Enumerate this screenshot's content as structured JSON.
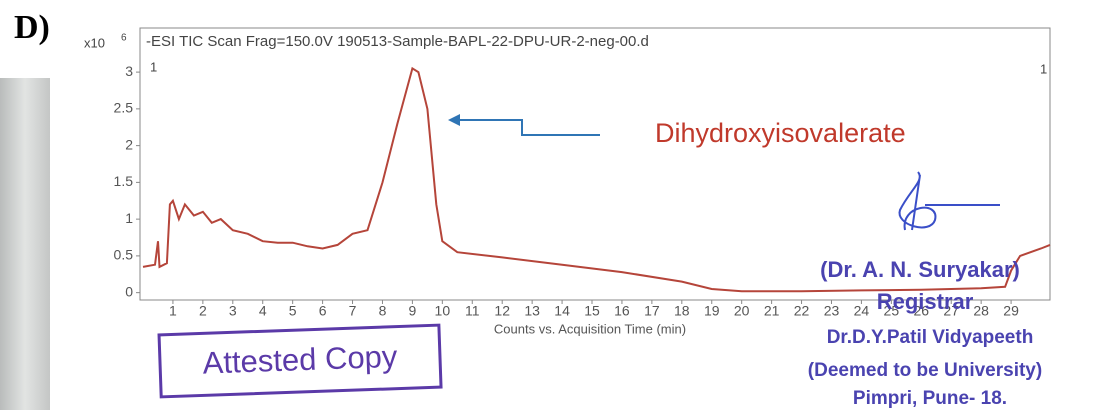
{
  "panel_label": "D)",
  "chart_data": {
    "type": "line",
    "title": "-ESI TIC Scan Frag=150.0V 190513-Sample-BAPL-22-DPU-UR-2-neg-00.d",
    "y_scale_base": "x10",
    "y_scale_exponent": "6",
    "markers": [
      "1",
      "1"
    ],
    "xlabel": "Counts vs. Acquisition Time (min)",
    "annotation": "Dihydroxyisovalerate",
    "x": [
      0,
      0.4,
      0.5,
      0.55,
      0.8,
      0.9,
      1.0,
      1.2,
      1.4,
      1.7,
      2.0,
      2.3,
      2.6,
      3.0,
      3.5,
      4.0,
      4.5,
      5.0,
      5.5,
      6.0,
      6.5,
      7.0,
      7.5,
      8.0,
      8.5,
      9.0,
      9.2,
      9.5,
      9.8,
      10.0,
      10.5,
      12,
      14,
      16,
      18,
      19,
      20,
      22,
      24,
      26,
      28,
      28.8,
      29.0,
      29.3,
      30.0,
      30.3
    ],
    "values": [
      0.35,
      0.38,
      0.7,
      0.35,
      0.4,
      1.2,
      1.25,
      1.0,
      1.2,
      1.05,
      1.1,
      0.95,
      1.0,
      0.85,
      0.8,
      0.7,
      0.68,
      0.68,
      0.63,
      0.6,
      0.65,
      0.8,
      0.85,
      1.5,
      2.3,
      3.05,
      3.0,
      2.5,
      1.2,
      0.7,
      0.55,
      0.48,
      0.38,
      0.28,
      0.15,
      0.05,
      0.02,
      0.02,
      0.03,
      0.04,
      0.06,
      0.08,
      0.3,
      0.5,
      0.6,
      0.65
    ],
    "color": "#b5453a",
    "xlim": [
      -0.1,
      30.3
    ],
    "ylim": [
      -0.1,
      3.6
    ],
    "xticks": [
      1,
      2,
      3,
      4,
      5,
      6,
      7,
      8,
      9,
      10,
      11,
      12,
      13,
      14,
      15,
      16,
      17,
      18,
      19,
      20,
      21,
      22,
      23,
      24,
      25,
      26,
      27,
      28,
      29
    ],
    "yticks": [
      0,
      0.5,
      1,
      1.5,
      2,
      2.5,
      3
    ]
  },
  "stamp": "Attested Copy",
  "signature": [
    "(Dr. A. N. Suryakar)",
    "Registrar",
    "Dr.D.Y.Patil Vidyapeeth",
    "(Deemed to be University)",
    "Pimpri, Pune- 18."
  ]
}
